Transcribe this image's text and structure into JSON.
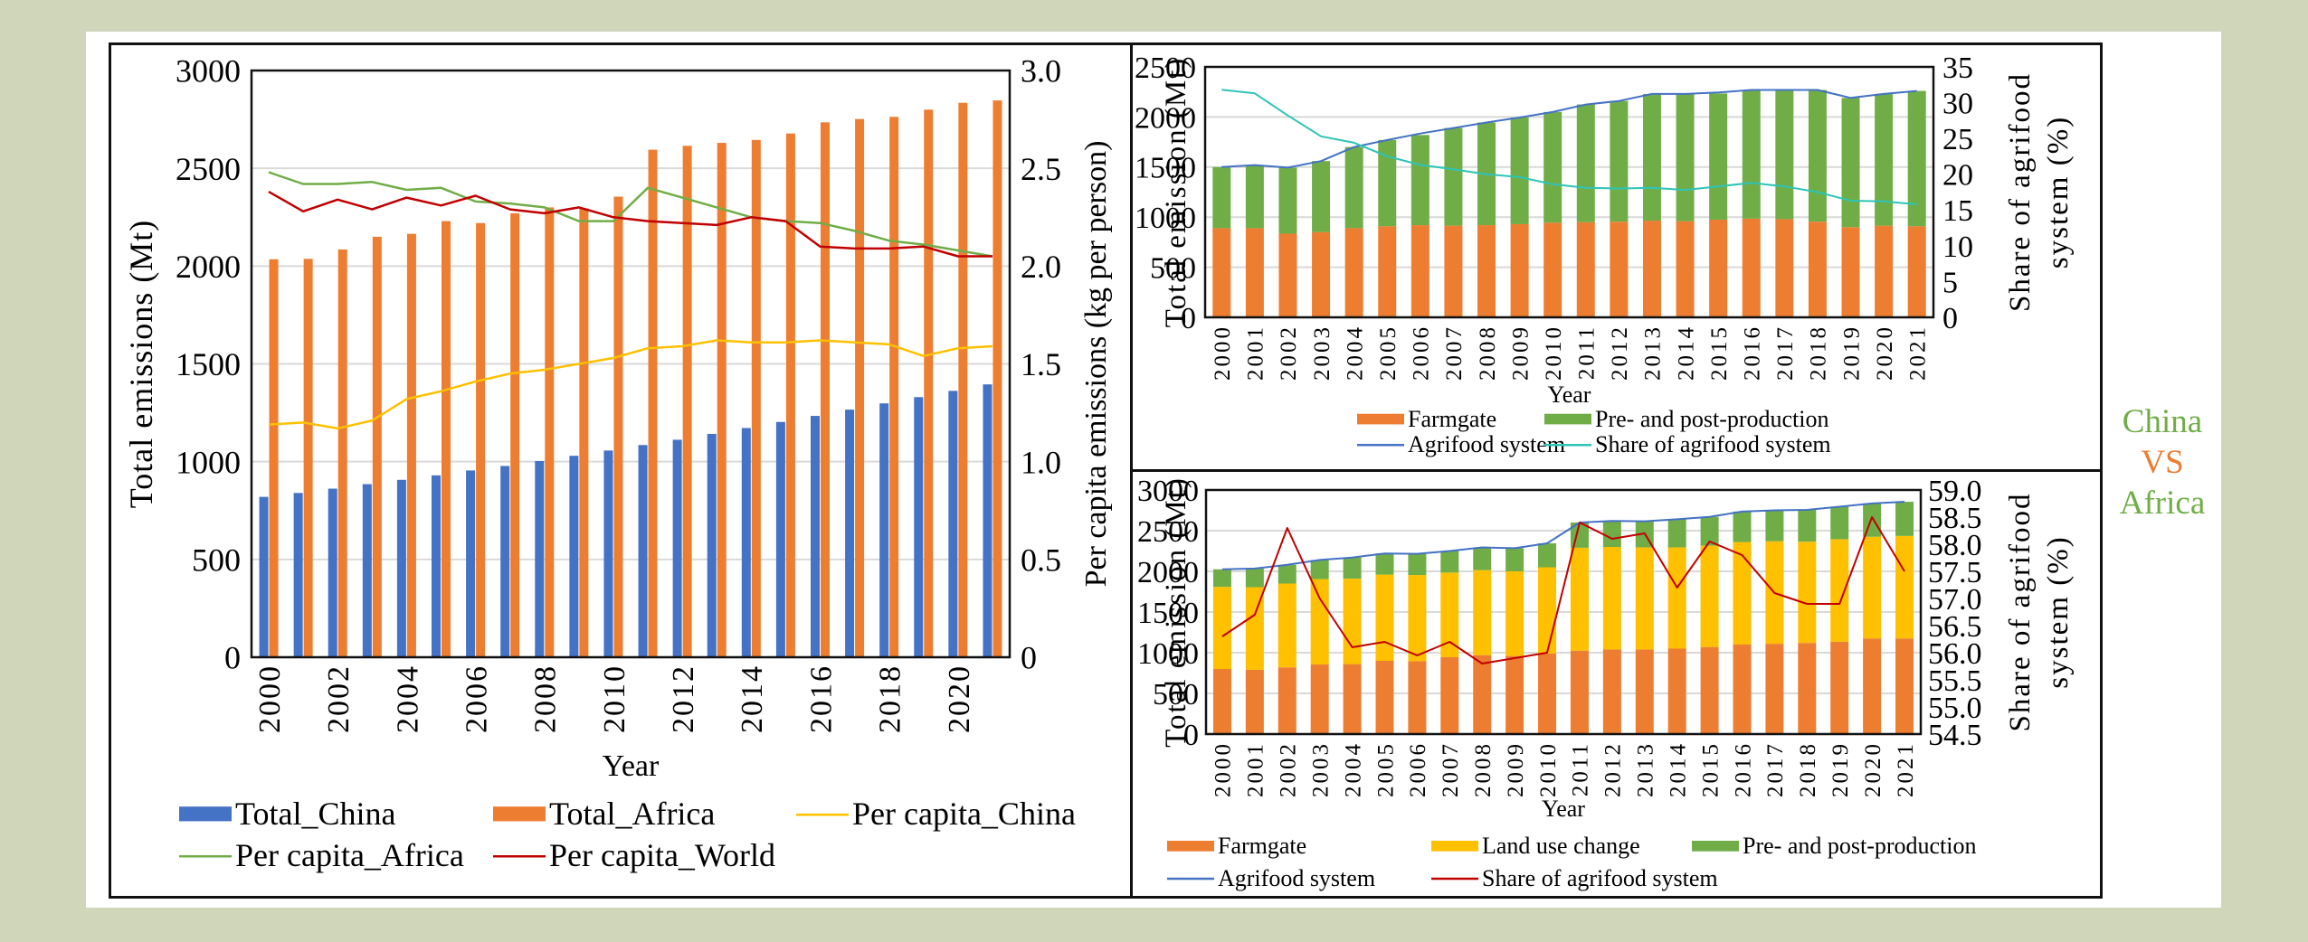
{
  "side_label": {
    "line1": "China",
    "line2": "VS",
    "line3": "Africa",
    "color_green": "#70AD47",
    "color_orange": "#ED7D31"
  },
  "chart_data": [
    {
      "id": "left",
      "type": "bar+line",
      "title": "",
      "xlabel": "Year",
      "ylabel": "Total emissions (Mt)",
      "y2label": "Per capita emissions (kg per person)",
      "ylim": [
        0,
        3000
      ],
      "y2lim": [
        0,
        3.0
      ],
      "yticks": [
        "0",
        "500",
        "1000",
        "1500",
        "2000",
        "2500",
        "3000"
      ],
      "y2ticks": [
        "0",
        "0.5",
        "1.0",
        "1.5",
        "2.0",
        "2.5",
        "3.0"
      ],
      "grid": true,
      "legend_position": "bottom",
      "categories": [
        "2000",
        "2001",
        "2002",
        "2003",
        "2004",
        "2005",
        "2006",
        "2007",
        "2008",
        "2009",
        "2010",
        "2011",
        "2012",
        "2013",
        "2014",
        "2015",
        "2016",
        "2017",
        "2018",
        "2019",
        "2020",
        "2021"
      ],
      "xtick_labels": [
        "2000",
        "2002",
        "2004",
        "2006",
        "2008",
        "2010",
        "2012",
        "2014",
        "2016",
        "2018",
        "2020"
      ],
      "bar_series": [
        {
          "name": "Total_China",
          "color": "#4472C4",
          "values": [
            820,
            840,
            862,
            885,
            907,
            930,
            955,
            978,
            1003,
            1030,
            1057,
            1085,
            1112,
            1142,
            1172,
            1203,
            1234,
            1266,
            1298,
            1330,
            1362,
            1395
          ]
        },
        {
          "name": "Total_Africa",
          "color": "#ED7D31",
          "values": [
            2035,
            2037,
            2085,
            2150,
            2165,
            2230,
            2220,
            2270,
            2300,
            2295,
            2355,
            2595,
            2615,
            2630,
            2645,
            2678,
            2735,
            2752,
            2763,
            2800,
            2835,
            2847
          ]
        }
      ],
      "line_series": [
        {
          "name": "Per capita_China",
          "color": "#FFC000",
          "axis": "right",
          "values": [
            1.19,
            1.2,
            1.17,
            1.21,
            1.32,
            1.36,
            1.41,
            1.45,
            1.47,
            1.5,
            1.53,
            1.58,
            1.59,
            1.62,
            1.61,
            1.61,
            1.62,
            1.61,
            1.6,
            1.54,
            1.58,
            1.59
          ]
        },
        {
          "name": "Per capita_Africa",
          "color": "#70AD47",
          "axis": "right",
          "values": [
            2.48,
            2.42,
            2.42,
            2.43,
            2.39,
            2.4,
            2.33,
            2.32,
            2.3,
            2.23,
            2.23,
            2.4,
            2.35,
            2.3,
            2.25,
            2.23,
            2.22,
            2.18,
            2.13,
            2.11,
            2.08,
            2.05
          ]
        },
        {
          "name": "Per capita_World",
          "color": "#C00000",
          "axis": "right",
          "values": [
            2.38,
            2.28,
            2.34,
            2.29,
            2.35,
            2.31,
            2.36,
            2.29,
            2.27,
            2.3,
            2.25,
            2.23,
            2.22,
            2.21,
            2.25,
            2.23,
            2.1,
            2.09,
            2.09,
            2.1,
            2.05,
            2.05
          ]
        }
      ],
      "legend": [
        "Total_China",
        "Total_Africa",
        "Per capita_China",
        "Per capita_Africa",
        "Per capita_World"
      ]
    },
    {
      "id": "top_right",
      "type": "stacked-bar+line",
      "xlabel": "Year",
      "ylabel": "Total emission (Mt)",
      "y2label": "Share of agrifood system (%)",
      "ylim": [
        0,
        2500
      ],
      "y2lim": [
        0,
        35
      ],
      "yticks": [
        "0",
        "500",
        "1000",
        "1500",
        "2000",
        "2500"
      ],
      "y2ticks": [
        "0",
        "5",
        "10",
        "15",
        "20",
        "25",
        "30",
        "35"
      ],
      "grid": true,
      "legend_position": "bottom",
      "categories": [
        "2000",
        "2001",
        "2002",
        "2003",
        "2004",
        "2005",
        "2006",
        "2007",
        "2008",
        "2009",
        "2010",
        "2011",
        "2012",
        "2013",
        "2014",
        "2015",
        "2016",
        "2017",
        "2018",
        "2019",
        "2020",
        "2021"
      ],
      "bar_series": [
        {
          "name": "Farmgate",
          "color": "#ED7D31",
          "values": [
            890,
            890,
            835,
            850,
            890,
            910,
            920,
            915,
            920,
            930,
            945,
            950,
            955,
            965,
            960,
            975,
            985,
            980,
            955,
            900,
            915,
            910
          ]
        },
        {
          "name": "Pre- and post-production",
          "color": "#70AD47",
          "values": [
            610,
            630,
            660,
            710,
            810,
            860,
            900,
            975,
            1025,
            1065,
            1105,
            1175,
            1205,
            1265,
            1270,
            1260,
            1285,
            1290,
            1315,
            1290,
            1315,
            1350
          ]
        }
      ],
      "line_series": [
        {
          "name": "Agrifood system",
          "color": "#4472C4",
          "axis": "left",
          "values": [
            1500,
            1520,
            1495,
            1560,
            1700,
            1770,
            1835,
            1890,
            1945,
            1995,
            2050,
            2125,
            2160,
            2230,
            2230,
            2245,
            2270,
            2270,
            2270,
            2190,
            2230,
            2260
          ]
        },
        {
          "name": "Share of agrifood system",
          "color": "#2EC4B6",
          "axis": "right",
          "values": [
            31.8,
            31.3,
            28.2,
            25.3,
            24.4,
            22.5,
            21.3,
            20.7,
            20.0,
            19.6,
            18.6,
            18.1,
            18.0,
            18.1,
            17.8,
            18.3,
            18.8,
            18.3,
            17.5,
            16.3,
            16.2,
            15.8
          ]
        }
      ],
      "legend": [
        "Farmgate",
        "Pre- and post-production",
        "Agrifood system",
        "Share of agrifood system"
      ]
    },
    {
      "id": "bottom_right",
      "type": "stacked-bar+line",
      "xlabel": "Year",
      "ylabel": "Total emission (Mt)",
      "y2label": "Share of agrifood system (%)",
      "ylim": [
        0,
        3000
      ],
      "y2lim": [
        54.5,
        59.0
      ],
      "yticks": [
        "0",
        "500",
        "1000",
        "1500",
        "2000",
        "2500",
        "3000"
      ],
      "y2ticks": [
        "54.5",
        "55.0",
        "55.5",
        "56.0",
        "56.5",
        "57.0",
        "57.5",
        "58.0",
        "58.5",
        "59.0"
      ],
      "grid": true,
      "legend_position": "bottom",
      "categories": [
        "2000",
        "2001",
        "2002",
        "2003",
        "2004",
        "2005",
        "2006",
        "2007",
        "2008",
        "2009",
        "2010",
        "2011",
        "2012",
        "2013",
        "2014",
        "2015",
        "2016",
        "2017",
        "2018",
        "2019",
        "2020",
        "2021"
      ],
      "bar_series": [
        {
          "name": "Farmgate",
          "color": "#ED7D31",
          "values": [
            800,
            790,
            820,
            855,
            860,
            900,
            895,
            945,
            970,
            960,
            990,
            1025,
            1040,
            1040,
            1050,
            1070,
            1100,
            1110,
            1120,
            1135,
            1175,
            1175
          ]
        },
        {
          "name": "Land use change",
          "color": "#FFC000",
          "values": [
            1010,
            1015,
            1030,
            1050,
            1050,
            1060,
            1060,
            1040,
            1045,
            1040,
            1060,
            1265,
            1260,
            1255,
            1245,
            1245,
            1260,
            1260,
            1245,
            1260,
            1250,
            1260
          ]
        },
        {
          "name": "Pre- and post-production",
          "color": "#70AD47",
          "values": [
            215,
            230,
            230,
            235,
            260,
            260,
            260,
            265,
            280,
            285,
            295,
            310,
            320,
            320,
            345,
            355,
            375,
            380,
            390,
            400,
            410,
            420
          ]
        }
      ],
      "line_series": [
        {
          "name": "Agrifood system",
          "color": "#4472C4",
          "axis": "left",
          "values": [
            2025,
            2035,
            2080,
            2140,
            2170,
            2220,
            2215,
            2250,
            2295,
            2285,
            2345,
            2600,
            2620,
            2615,
            2640,
            2670,
            2735,
            2750,
            2755,
            2795,
            2835,
            2855
          ]
        },
        {
          "name": "Share of agrifood system",
          "color": "#C00000",
          "axis": "right",
          "values": [
            56.3,
            56.7,
            58.3,
            57.0,
            56.1,
            56.2,
            55.95,
            56.2,
            55.8,
            55.9,
            56.0,
            58.4,
            58.1,
            58.2,
            57.2,
            58.05,
            57.8,
            57.1,
            56.9,
            56.9,
            58.5,
            57.5
          ]
        }
      ],
      "legend": [
        "Farmgate",
        "Land use change",
        "Pre- and post-production",
        "Agrifood system",
        "Share of agrifood system"
      ]
    }
  ]
}
